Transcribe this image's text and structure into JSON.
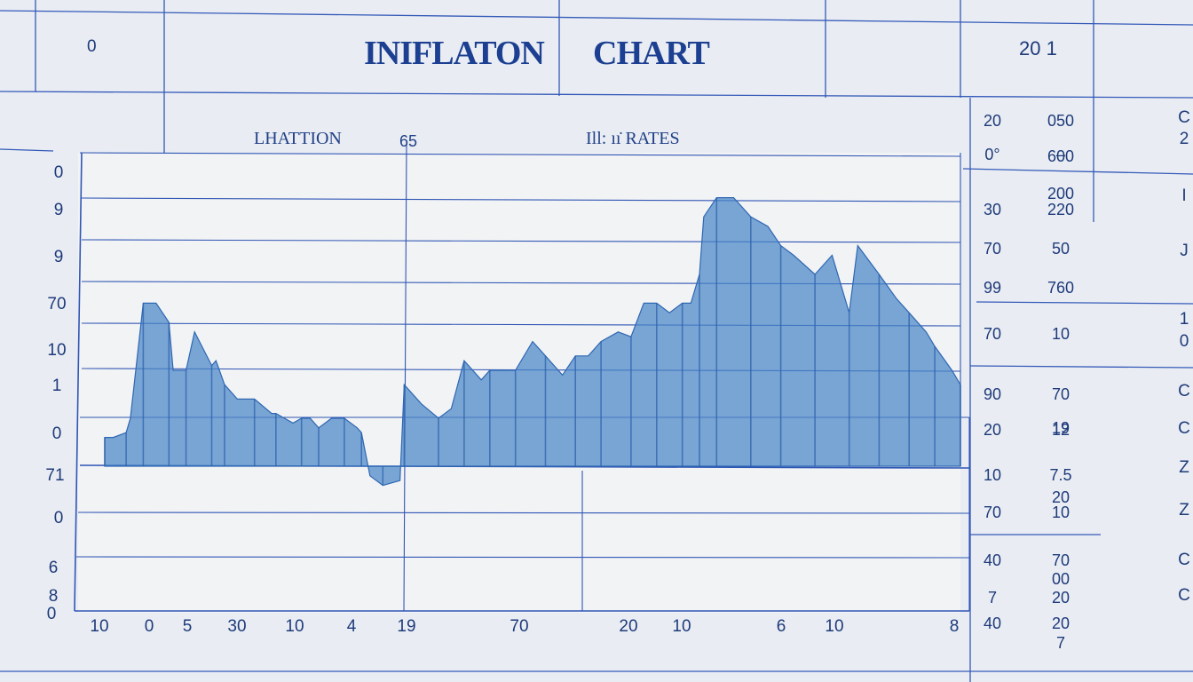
{
  "header": {
    "corner_left": "0",
    "title_word1": "INIFLATON",
    "title_word2": "CHART",
    "year": "20 1"
  },
  "subheader": {
    "left": "LHATTION",
    "left_num": "65",
    "right": "Ill: ıı̇ RATES"
  },
  "chart_data": {
    "type": "area",
    "title": "INIFLATON CHART",
    "ylabels": [
      "0",
      "9",
      "9",
      "70",
      "10",
      "1",
      "0",
      "71",
      "0",
      "6",
      "8",
      "0"
    ],
    "xlabels": [
      "10",
      "0",
      "5",
      "30",
      "10",
      "4",
      "19",
      "70",
      "20",
      "10",
      "6",
      "10",
      "8"
    ],
    "series": [
      {
        "x": [
          0,
          2,
          5,
          6,
          9,
          12,
          15,
          16,
          19,
          21,
          25,
          26,
          28,
          31,
          35,
          39,
          40,
          44,
          46,
          48,
          50,
          53,
          56,
          59,
          60,
          62,
          65,
          69,
          70,
          74,
          78,
          81,
          84,
          88,
          90,
          92,
          96,
          100,
          103,
          107,
          110,
          113,
          116,
          120,
          123,
          126,
          129,
          132,
          135,
          137,
          139,
          140,
          143,
          147,
          151,
          155,
          158,
          161,
          166,
          170,
          174,
          176,
          181,
          185,
          188,
          192,
          194,
          198,
          200
        ],
        "y": [
          6,
          6,
          7,
          10,
          34,
          34,
          30,
          20,
          20,
          28,
          21,
          22,
          17,
          14,
          14,
          11,
          11,
          9,
          10,
          10,
          8,
          10,
          10,
          8,
          7,
          -2,
          -4,
          -3,
          17,
          13,
          10,
          12,
          22,
          18,
          20,
          20,
          20,
          26,
          23,
          19,
          23,
          23,
          26,
          28,
          27,
          34,
          34,
          32,
          34,
          34,
          40,
          52,
          56,
          56,
          52,
          50,
          46,
          44,
          40,
          44,
          32,
          46,
          40,
          35,
          32,
          28,
          25,
          20,
          17
        ]
      }
    ],
    "colors": {
      "fill": "#4a86c8",
      "stroke": "#2e67b3",
      "grid": "#2f55b5"
    }
  },
  "side_panel": {
    "rows": [
      [
        "20",
        "050"
      ],
      [
        "0°",
        "–"
      ],
      [
        "",
        "600"
      ],
      [
        "",
        "200"
      ],
      [
        "30",
        "220"
      ],
      [
        "70",
        "50"
      ],
      [
        "99",
        "760"
      ],
      [
        "70",
        "10"
      ],
      [
        "90",
        "70"
      ],
      [
        "20",
        "12"
      ],
      [
        "",
        "19"
      ],
      [
        "10",
        "7.5"
      ],
      [
        "",
        "20"
      ],
      [
        "70",
        "10"
      ],
      [
        "40",
        "70"
      ],
      [
        "",
        "00"
      ],
      [
        "7",
        "20"
      ],
      [
        "40",
        "20"
      ],
      [
        "",
        "7"
      ]
    ],
    "edge_chars": [
      "C",
      "2",
      "I",
      "J",
      "1",
      "0",
      "C",
      "C",
      "Z",
      "Z",
      "C",
      "C"
    ]
  }
}
